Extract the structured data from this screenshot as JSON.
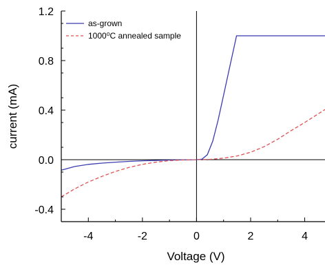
{
  "chart_data": {
    "type": "line",
    "title": "",
    "xlabel": "Voltage (V)",
    "ylabel": "current (mA)",
    "xlim": [
      -5,
      4.75
    ],
    "ylim": [
      -0.5,
      1.2
    ],
    "xticks": [
      -4,
      -2,
      0,
      2,
      4
    ],
    "yticks": [
      -0.4,
      0.0,
      0.4,
      0.8,
      1.2
    ],
    "xtick_labels": [
      "-4",
      "-2",
      "0",
      "2",
      "4"
    ],
    "ytick_labels": [
      "-0.4",
      "0.0",
      "0.4",
      "0.8",
      "1.2"
    ],
    "grid": false,
    "legend_position": "top-left",
    "series": [
      {
        "name": "as-grown",
        "color": "#3b3bb0",
        "style": "solid",
        "x": [
          -5.0,
          -4.5,
          -4.0,
          -3.5,
          -3.0,
          -2.5,
          -2.0,
          -1.5,
          -1.0,
          -0.5,
          0.0,
          0.2,
          0.4,
          0.6,
          0.8,
          1.0,
          1.2,
          1.4,
          1.48,
          2.0,
          3.0,
          4.0,
          4.75
        ],
        "y": [
          -0.085,
          -0.055,
          -0.038,
          -0.028,
          -0.02,
          -0.014,
          -0.009,
          -0.006,
          -0.003,
          -0.001,
          0.0,
          0.004,
          0.04,
          0.15,
          0.32,
          0.52,
          0.72,
          0.92,
          1.0,
          1.0,
          1.0,
          1.0,
          1.0
        ]
      },
      {
        "name": "1000⁰C annealed sample",
        "color": "#e05050",
        "style": "dashed",
        "x": [
          -5.0,
          -4.5,
          -4.0,
          -3.5,
          -3.0,
          -2.5,
          -2.0,
          -1.5,
          -1.0,
          -0.5,
          0.0,
          0.5,
          1.0,
          1.5,
          2.0,
          2.5,
          3.0,
          3.5,
          4.0,
          4.5,
          4.75
        ],
        "y": [
          -0.3,
          -0.235,
          -0.18,
          -0.135,
          -0.095,
          -0.063,
          -0.038,
          -0.02,
          -0.008,
          -0.002,
          0.0,
          0.003,
          0.012,
          0.03,
          0.06,
          0.105,
          0.165,
          0.235,
          0.3,
          0.37,
          0.405
        ]
      }
    ]
  }
}
